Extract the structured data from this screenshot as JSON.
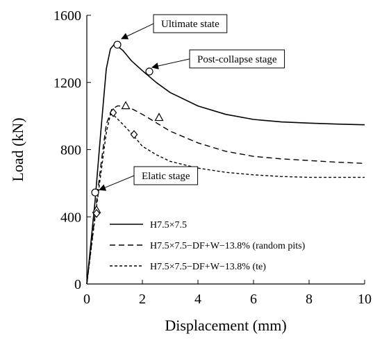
{
  "chart_data": {
    "type": "line",
    "title": "",
    "xlabel": "Displacement (mm)",
    "ylabel": "Load (kN)",
    "xlim": [
      0,
      10
    ],
    "ylim": [
      0,
      1600
    ],
    "xticks": [
      0,
      2,
      4,
      6,
      8,
      10
    ],
    "yticks": [
      0,
      400,
      800,
      1200,
      1600
    ],
    "grid": false,
    "legend_position": "bottom-center",
    "series": [
      {
        "name": "H7.5×7.5",
        "style": "solid",
        "x": [
          0,
          0.3,
          0.5,
          0.7,
          0.85,
          1.0,
          1.3,
          1.6,
          2.0,
          2.5,
          3.0,
          4.0,
          5.0,
          6.0,
          7.0,
          8.0,
          9.0,
          10.0
        ],
        "y": [
          0,
          500,
          900,
          1280,
          1400,
          1430,
          1390,
          1330,
          1270,
          1200,
          1140,
          1060,
          1010,
          980,
          965,
          958,
          952,
          948
        ]
      },
      {
        "name": "H7.5×7.5−DF+W−13.8% (random pits)",
        "style": "dashed",
        "x": [
          0,
          0.3,
          0.5,
          0.7,
          0.9,
          1.1,
          1.3,
          1.6,
          2.0,
          2.5,
          3.0,
          4.0,
          5.0,
          6.0,
          7.0,
          8.0,
          9.0,
          10.0
        ],
        "y": [
          0,
          420,
          700,
          950,
          1040,
          1060,
          1060,
          1045,
          1010,
          960,
          910,
          840,
          790,
          760,
          745,
          735,
          725,
          718
        ]
      },
      {
        "name": "H7.5×7.5−DF+W−13.8% (te)",
        "style": "dotted",
        "x": [
          0,
          0.3,
          0.5,
          0.7,
          0.85,
          1.0,
          1.3,
          1.7,
          2.0,
          2.5,
          3.0,
          4.0,
          5.0,
          6.0,
          7.0,
          8.0,
          9.0,
          10.0
        ],
        "y": [
          0,
          400,
          650,
          900,
          1010,
          1000,
          950,
          880,
          820,
          770,
          730,
          690,
          665,
          650,
          640,
          635,
          635,
          635
        ]
      }
    ],
    "markers": [
      {
        "series": 0,
        "shape": "circle",
        "x": 0.3,
        "y": 545
      },
      {
        "series": 0,
        "shape": "circle",
        "x": 1.1,
        "y": 1425
      },
      {
        "series": 0,
        "shape": "circle",
        "x": 2.25,
        "y": 1265
      },
      {
        "series": 1,
        "shape": "triangle",
        "x": 0.35,
        "y": 440
      },
      {
        "series": 1,
        "shape": "triangle",
        "x": 1.4,
        "y": 1060
      },
      {
        "series": 1,
        "shape": "triangle",
        "x": 2.6,
        "y": 990
      },
      {
        "series": 2,
        "shape": "diamond",
        "x": 0.35,
        "y": 420
      },
      {
        "series": 2,
        "shape": "diamond",
        "x": 0.95,
        "y": 1020
      },
      {
        "series": 2,
        "shape": "diamond",
        "x": 1.7,
        "y": 890
      }
    ],
    "annotations": [
      {
        "text": "Ultimate state",
        "target_x": 1.25,
        "target_y": 1460,
        "box_x": 2.4,
        "box_y": 1550
      },
      {
        "text": "Post-collapse stage",
        "target_x": 2.35,
        "target_y": 1290,
        "box_x": 3.7,
        "box_y": 1340
      },
      {
        "text": "Elatic stage",
        "target_x": 0.45,
        "target_y": 560,
        "box_x": 1.7,
        "box_y": 645
      }
    ]
  }
}
